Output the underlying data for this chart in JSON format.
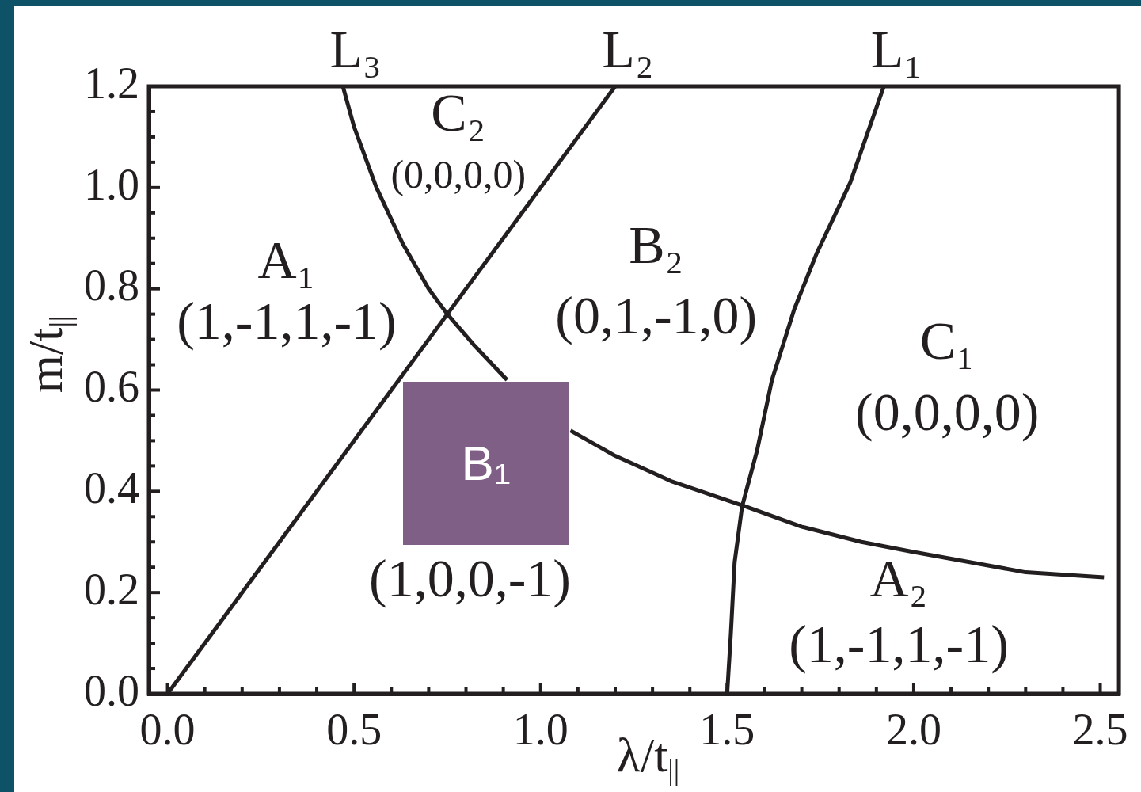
{
  "chart_data": {
    "type": "line",
    "xlabel": "λ/t$_{||}$",
    "ylabel": "m/t$_{||}$",
    "xlim": [
      -0.05,
      2.55
    ],
    "xticks": [
      {
        "value": 0,
        "label": "0.0"
      },
      {
        "value": 0.1,
        "label": null
      },
      {
        "value": 0.2,
        "label": null
      },
      {
        "value": 0.3,
        "label": null
      },
      {
        "value": 0.4,
        "label": null
      },
      0.5,
      {
        "value": 0.6,
        "label": null
      },
      {
        "value": 0.7,
        "label": null
      },
      {
        "value": 0.8,
        "label": null
      },
      {
        "value": 0.9,
        "label": null
      },
      {
        "value": 1,
        "label": "1.0"
      },
      {
        "value": 1.1,
        "label": null
      },
      {
        "value": 1.2,
        "label": null
      },
      {
        "value": 1.3,
        "label": null
      },
      {
        "value": 1.4,
        "label": null
      },
      1.5,
      {
        "value": 1.6,
        "label": null
      },
      {
        "value": 1.7,
        "label": null
      },
      {
        "value": 1.8,
        "label": null
      },
      {
        "value": 1.9,
        "label": null
      },
      {
        "value": 2,
        "label": "2.0"
      },
      {
        "value": 2.1,
        "label": null
      },
      {
        "value": 2.2,
        "label": null
      },
      {
        "value": 2.3,
        "label": null
      },
      {
        "value": 2.4,
        "label": null
      },
      2.5
    ],
    "ylim": [
      0,
      1.2
    ],
    "yticks": [
      {
        "value": 0,
        "label": "0.0"
      },
      {
        "value": 0.05,
        "label": null
      },
      {
        "value": 0.1,
        "label": null
      },
      {
        "value": 0.15,
        "label": null
      },
      0.2,
      {
        "value": 0.25,
        "label": null
      },
      {
        "value": 0.3,
        "label": null
      },
      {
        "value": 0.35,
        "label": null
      },
      0.4,
      {
        "value": 0.45,
        "label": null
      },
      {
        "value": 0.5,
        "label": null
      },
      {
        "value": 0.55,
        "label": null
      },
      0.6,
      {
        "value": 0.65,
        "label": null
      },
      {
        "value": 0.7,
        "label": null
      },
      {
        "value": 0.75,
        "label": null
      },
      0.8,
      {
        "value": 0.85,
        "label": null
      },
      {
        "value": 0.9,
        "label": null
      },
      {
        "value": 0.95,
        "label": null
      },
      {
        "value": 1,
        "label": "1.0"
      },
      {
        "value": 1.05,
        "label": null
      },
      {
        "value": 1.1,
        "label": null
      },
      {
        "value": 1.15,
        "label": null
      },
      1.2
    ],
    "marker": "none",
    "line_style": "solid",
    "series": [
      {
        "name": "L₃",
        "color": "#231f20",
        "x": [
          0.47,
          0.5,
          0.56,
          0.63,
          0.7,
          0.75,
          0.82,
          0.91,
          1.0,
          1.08,
          1.2,
          1.35,
          1.55,
          1.7,
          1.86,
          2.0,
          2.15,
          2.3,
          2.51
        ],
        "values": [
          1.2,
          1.12,
          1.0,
          0.89,
          0.8,
          0.75,
          0.69,
          0.62,
          null,
          0.52,
          0.47,
          0.42,
          0.37,
          0.33,
          0.3,
          0.28,
          0.26,
          0.24,
          0.23
        ]
      },
      {
        "name": "L₂",
        "color": "#231f20",
        "x": [
          0,
          0.3,
          0.6,
          0.9,
          1.2
        ],
        "values": [
          0,
          0.3,
          0.6,
          0.9,
          1.2
        ]
      },
      {
        "name": "L₁",
        "color": "#231f20",
        "x": [
          1.5,
          1.51,
          1.52,
          1.54,
          1.58,
          1.62,
          1.68,
          1.74,
          1.83,
          1.92
        ],
        "values": [
          0,
          0.12,
          0.26,
          0.37,
          0.48,
          0.62,
          0.76,
          0.87,
          1.01,
          1.2
        ]
      }
    ],
    "annotations": [
      "C₂",
      "(0,0,0,0)",
      "A₁",
      "(1,-1,1,-1)",
      "B₂",
      "(0,1,-1,0)",
      "C₁",
      "(0,0,0,0)",
      "B₁",
      "(1,0,0,-1)",
      "A₂",
      "(1,-1,1,-1)"
    ]
  }
}
